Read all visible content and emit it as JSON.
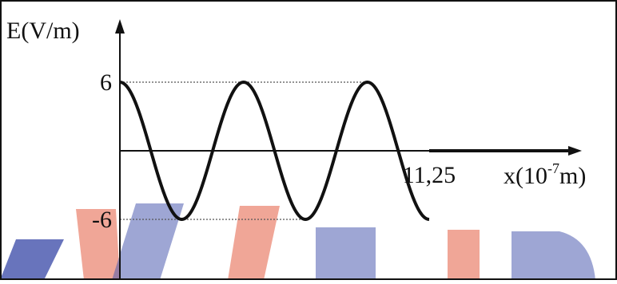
{
  "chart_data": {
    "type": "line",
    "ylabel": "E(V/m)",
    "xlabel_main": "x(10",
    "xlabel_exp": "-7",
    "xlabel_tail": "m)",
    "yticks": [
      {
        "value": 6,
        "label": "6"
      },
      {
        "value": -6,
        "label": "-6"
      }
    ],
    "xticks": [
      {
        "value": 11.25,
        "label": "11,25"
      }
    ],
    "wave": {
      "amplitude": 6,
      "x_start": 0,
      "x_end": 11.25,
      "periods": 2.5,
      "initial_phase": "cos (starts at +6)"
    },
    "after_wave": {
      "x_start": 11.25,
      "x_end": 16.5,
      "value": 0
    },
    "ylim": [
      -7.4,
      9.6
    ],
    "xlim": [
      0,
      18.3
    ],
    "grid": false,
    "guides": "dotted lines at y = 6 and y = -6",
    "colors": {
      "curve": "#111111",
      "axis": "#111111",
      "guide": "#555555",
      "watermark_blue": "#3b4aa8",
      "watermark_red": "#e04b2c"
    }
  }
}
